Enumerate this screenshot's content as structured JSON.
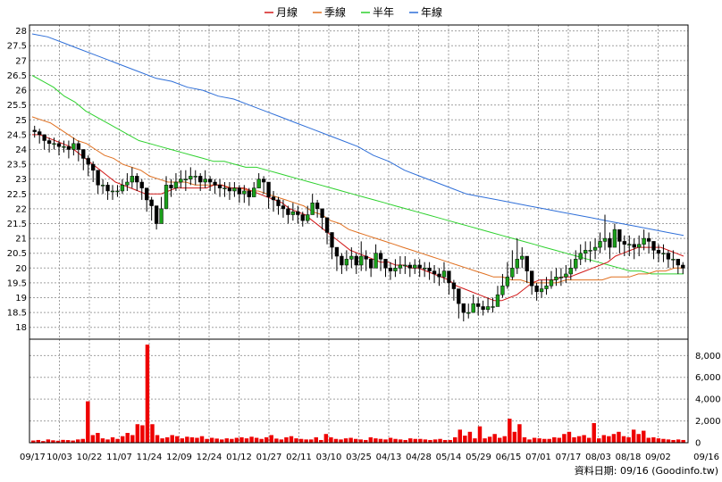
{
  "chart_data": {
    "type": "candlestick",
    "legend": {
      "placement": "top-center",
      "items": [
        {
          "label": "月線",
          "color": "#d21a1a"
        },
        {
          "label": "季線",
          "color": "#e07020"
        },
        {
          "label": "半年",
          "color": "#2ed12e"
        },
        {
          "label": "年線",
          "color": "#2f6fd8"
        }
      ]
    },
    "up_color": "#1aa01a",
    "down_color": "#000000",
    "volume_color": "#ee0000",
    "price_axis": {
      "ylim": [
        17.6,
        28.2
      ],
      "ticks": [
        "18",
        "18.5",
        "19",
        "19.5",
        "20",
        "20.5",
        "21",
        "21.5",
        "22",
        "22.5",
        "23",
        "23.5",
        "24",
        "24.5",
        "25",
        "25.5",
        "26",
        "26.5",
        "27",
        "27.5",
        "28"
      ]
    },
    "volume_axis": {
      "ylim": [
        0,
        9500
      ],
      "ticks": [
        "0",
        "2,000",
        "4,000",
        "6,000",
        "8,000"
      ]
    },
    "x_axis": {
      "ticks": [
        "09/17",
        "10/03",
        "10/22",
        "11/07",
        "11/24",
        "12/09",
        "12/24",
        "01/12",
        "01/27",
        "02/11",
        "03/10",
        "03/25",
        "04/13",
        "04/28",
        "05/14",
        "05/29",
        "06/15",
        "07/01",
        "07/17",
        "08/03",
        "08/18",
        "09/02",
        "09/16"
      ]
    },
    "grid": true,
    "closes": [
      24.6,
      24.5,
      24.3,
      24.2,
      24.2,
      24.1,
      24.1,
      24.0,
      24.2,
      24.0,
      23.7,
      23.5,
      23.3,
      22.8,
      22.8,
      22.6,
      22.6,
      22.6,
      22.8,
      22.9,
      23.1,
      22.9,
      22.7,
      22.3,
      22.1,
      21.5,
      22.0,
      22.8,
      22.7,
      22.9,
      23.0,
      23.0,
      23.1,
      23.1,
      22.9,
      23.0,
      22.9,
      22.8,
      22.7,
      22.7,
      22.6,
      22.7,
      22.5,
      22.6,
      22.4,
      22.7,
      23.0,
      22.9,
      22.4,
      22.3,
      22.1,
      22.0,
      21.8,
      21.9,
      21.8,
      21.6,
      21.8,
      22.2,
      22.0,
      21.7,
      21.2,
      20.7,
      20.4,
      20.1,
      20.3,
      20.4,
      20.1,
      20.4,
      20.3,
      20.0,
      20.5,
      20.3,
      20.0,
      19.9,
      20.0,
      20.1,
      20.1,
      20.0,
      20.1,
      20.0,
      20.0,
      19.9,
      19.8,
      19.7,
      19.9,
      19.5,
      19.3,
      18.8,
      18.5,
      18.5,
      18.8,
      18.7,
      18.6,
      18.7,
      18.7,
      19.1,
      19.4,
      19.7,
      20.0,
      20.3,
      20.4,
      19.9,
      19.4,
      19.2,
      19.3,
      19.4,
      19.6,
      19.7,
      19.7,
      19.8,
      20.0,
      20.3,
      20.5,
      20.6,
      20.6,
      20.7,
      20.9,
      21.0,
      20.7,
      21.3,
      20.9,
      20.8,
      20.8,
      20.7,
      20.8,
      21.0,
      20.9,
      20.6,
      20.5,
      20.5,
      20.3,
      20.3,
      20.1,
      20.0
    ],
    "lows": [
      24.4,
      24.2,
      24.0,
      23.9,
      24.0,
      23.8,
      23.9,
      23.7,
      23.8,
      23.6,
      23.3,
      23.1,
      22.9,
      22.5,
      22.5,
      22.3,
      22.3,
      22.4,
      22.5,
      22.6,
      22.7,
      22.6,
      22.3,
      21.9,
      21.6,
      21.3,
      21.6,
      22.3,
      22.4,
      22.6,
      22.7,
      22.6,
      22.8,
      22.8,
      22.6,
      22.7,
      22.6,
      22.5,
      22.4,
      22.4,
      22.3,
      22.4,
      22.2,
      22.2,
      22.1,
      22.4,
      22.7,
      22.5,
      22.0,
      21.9,
      21.8,
      21.7,
      21.5,
      21.6,
      21.5,
      21.4,
      21.5,
      21.8,
      21.7,
      21.3,
      20.8,
      20.3,
      19.9,
      19.8,
      19.9,
      20.0,
      19.8,
      19.9,
      19.9,
      19.7,
      20.1,
      19.9,
      19.7,
      19.6,
      19.7,
      19.8,
      19.8,
      19.7,
      19.8,
      19.7,
      19.7,
      19.6,
      19.5,
      19.4,
      19.5,
      19.1,
      18.9,
      18.3,
      18.2,
      18.3,
      18.5,
      18.4,
      18.4,
      18.5,
      18.5,
      18.8,
      19.0,
      19.3,
      19.6,
      19.8,
      20.0,
      19.5,
      19.1,
      18.9,
      19.0,
      19.1,
      19.3,
      19.4,
      19.4,
      19.5,
      19.6,
      19.9,
      20.1,
      20.2,
      20.2,
      20.3,
      20.5,
      20.6,
      20.3,
      20.8,
      20.5,
      20.4,
      20.4,
      20.3,
      20.4,
      20.6,
      20.5,
      20.3,
      20.2,
      20.2,
      20.0,
      20.0,
      19.8,
      19.8
    ],
    "highs": [
      24.8,
      24.7,
      24.5,
      24.4,
      24.4,
      24.3,
      24.3,
      24.3,
      24.4,
      24.3,
      24.0,
      23.8,
      23.6,
      23.1,
      23.0,
      22.9,
      22.8,
      22.8,
      23.0,
      23.2,
      23.4,
      23.2,
      23.0,
      22.6,
      22.4,
      22.0,
      22.4,
      23.1,
      23.0,
      23.2,
      23.3,
      23.3,
      23.4,
      23.3,
      23.2,
      23.3,
      23.1,
      23.0,
      23.0,
      22.9,
      22.9,
      22.9,
      22.8,
      22.8,
      22.7,
      22.9,
      23.2,
      23.1,
      22.7,
      22.6,
      22.4,
      22.3,
      22.1,
      22.2,
      22.1,
      21.9,
      22.1,
      22.5,
      22.3,
      22.0,
      21.5,
      21.0,
      20.7,
      20.5,
      20.6,
      20.7,
      20.5,
      20.9,
      20.6,
      20.3,
      20.8,
      20.6,
      20.3,
      20.2,
      20.3,
      20.4,
      20.4,
      20.2,
      20.3,
      20.3,
      20.2,
      20.2,
      20.1,
      20.0,
      20.2,
      19.8,
      19.6,
      19.1,
      18.8,
      18.8,
      19.1,
      19.0,
      18.9,
      19.0,
      19.0,
      19.4,
      19.8,
      20.2,
      20.6,
      21.0,
      20.7,
      20.2,
      19.7,
      19.5,
      19.6,
      19.7,
      19.9,
      20.0,
      20.0,
      20.1,
      20.3,
      20.6,
      20.8,
      20.9,
      20.9,
      21.0,
      21.2,
      21.8,
      21.2,
      21.5,
      21.2,
      21.1,
      21.1,
      21.0,
      21.1,
      21.3,
      21.2,
      20.9,
      20.8,
      20.8,
      20.6,
      20.6,
      20.3,
      20.2
    ],
    "ma_month": [
      24.5,
      24.5,
      24.4,
      24.3,
      24.2,
      24.1,
      23.9,
      23.7,
      23.5,
      23.3,
      23.1,
      22.9,
      22.8,
      22.7,
      22.6,
      22.5,
      22.5,
      22.5,
      22.6,
      22.7,
      22.7,
      22.7,
      22.7,
      22.7,
      22.8,
      22.8,
      22.7,
      22.7,
      22.7,
      22.6,
      22.5,
      22.4,
      22.3,
      22.2,
      22.0,
      21.9,
      21.8,
      21.6,
      21.4,
      21.2,
      21.0,
      20.8,
      20.6,
      20.5,
      20.4,
      20.3,
      20.2,
      20.2,
      20.1,
      20.1,
      20.0,
      20.0,
      19.9,
      19.8,
      19.7,
      19.6,
      19.4,
      19.3,
      19.2,
      19.1,
      19.0,
      18.9,
      18.9,
      19.0,
      19.1,
      19.3,
      19.5,
      19.6,
      19.6,
      19.6,
      19.7,
      19.7,
      19.8,
      19.9,
      20.0,
      20.1,
      20.2,
      20.4,
      20.5,
      20.6,
      20.7,
      20.7,
      20.7,
      20.7,
      20.6,
      20.5,
      20.4
    ],
    "ma_quarter": [
      25.1,
      25.0,
      24.9,
      24.7,
      24.5,
      24.3,
      24.2,
      24.0,
      23.8,
      23.7,
      23.5,
      23.4,
      23.3,
      23.1,
      23.0,
      22.9,
      22.9,
      22.9,
      22.8,
      22.8,
      22.8,
      22.8,
      22.7,
      22.7,
      22.6,
      22.6,
      22.5,
      22.4,
      22.3,
      22.2,
      22.1,
      21.9,
      21.8,
      21.6,
      21.5,
      21.3,
      21.2,
      21.1,
      21.0,
      20.9,
      20.8,
      20.7,
      20.6,
      20.5,
      20.4,
      20.3,
      20.2,
      20.1,
      20.0,
      19.9,
      19.8,
      19.7,
      19.7,
      19.6,
      19.6,
      19.5,
      19.5,
      19.5,
      19.5,
      19.6,
      19.6,
      19.6,
      19.6,
      19.6,
      19.7,
      19.7,
      19.7,
      19.8,
      19.8,
      19.9,
      19.9,
      20.0,
      20.0
    ],
    "ma_half": [
      26.5,
      26.3,
      26.1,
      25.8,
      25.6,
      25.3,
      25.1,
      24.9,
      24.7,
      24.5,
      24.3,
      24.2,
      24.1,
      24.0,
      23.9,
      23.8,
      23.7,
      23.6,
      23.6,
      23.5,
      23.4,
      23.4,
      23.3,
      23.2,
      23.1,
      23.0,
      22.9,
      22.8,
      22.7,
      22.6,
      22.5,
      22.4,
      22.3,
      22.2,
      22.1,
      22.0,
      21.9,
      21.8,
      21.7,
      21.6,
      21.5,
      21.4,
      21.3,
      21.2,
      21.1,
      21.0,
      20.9,
      20.8,
      20.7,
      20.6,
      20.5,
      20.4,
      20.3,
      20.2,
      20.1,
      20.0,
      19.9,
      19.9,
      19.8,
      19.8,
      19.8,
      19.8
    ],
    "ma_year": [
      27.9,
      27.8,
      27.6,
      27.4,
      27.2,
      27.0,
      26.8,
      26.6,
      26.4,
      26.3,
      26.1,
      26.0,
      25.8,
      25.7,
      25.5,
      25.3,
      25.1,
      24.9,
      24.7,
      24.5,
      24.3,
      24.1,
      23.8,
      23.6,
      23.3,
      23.1,
      22.9,
      22.7,
      22.5,
      22.4,
      22.3,
      22.2,
      22.1,
      22.0,
      21.9,
      21.8,
      21.7,
      21.6,
      21.5,
      21.4,
      21.3,
      21.2,
      21.1
    ],
    "volumes": [
      200,
      250,
      150,
      300,
      220,
      180,
      260,
      240,
      200,
      300,
      350,
      3800,
      700,
      900,
      400,
      300,
      500,
      350,
      600,
      900,
      700,
      1700,
      1600,
      9000,
      1700,
      700,
      400,
      500,
      700,
      600,
      400,
      550,
      500,
      450,
      600,
      350,
      450,
      380,
      300,
      400,
      350,
      450,
      500,
      400,
      550,
      450,
      350,
      500,
      700,
      380,
      300,
      500,
      600,
      400,
      350,
      300,
      300,
      500,
      250,
      800,
      500,
      350,
      300,
      400,
      450,
      350,
      300,
      250,
      500,
      400,
      350,
      300,
      450,
      350,
      300,
      250,
      400,
      350,
      350,
      300,
      250,
      300,
      350,
      250,
      250,
      500,
      1200,
      650,
      1000,
      400,
      1500,
      400,
      550,
      800,
      450,
      600,
      2200,
      1000,
      1700,
      500,
      300,
      450,
      400,
      350,
      350,
      500,
      450,
      800,
      1000,
      500,
      600,
      700,
      450,
      1800,
      400,
      700,
      600,
      800,
      1000,
      600,
      500,
      1200,
      800,
      1100,
      450,
      500,
      400,
      350,
      300,
      250,
      300,
      250
    ]
  },
  "credit": "資料日期: 09/16  (Goodinfo.tw)"
}
